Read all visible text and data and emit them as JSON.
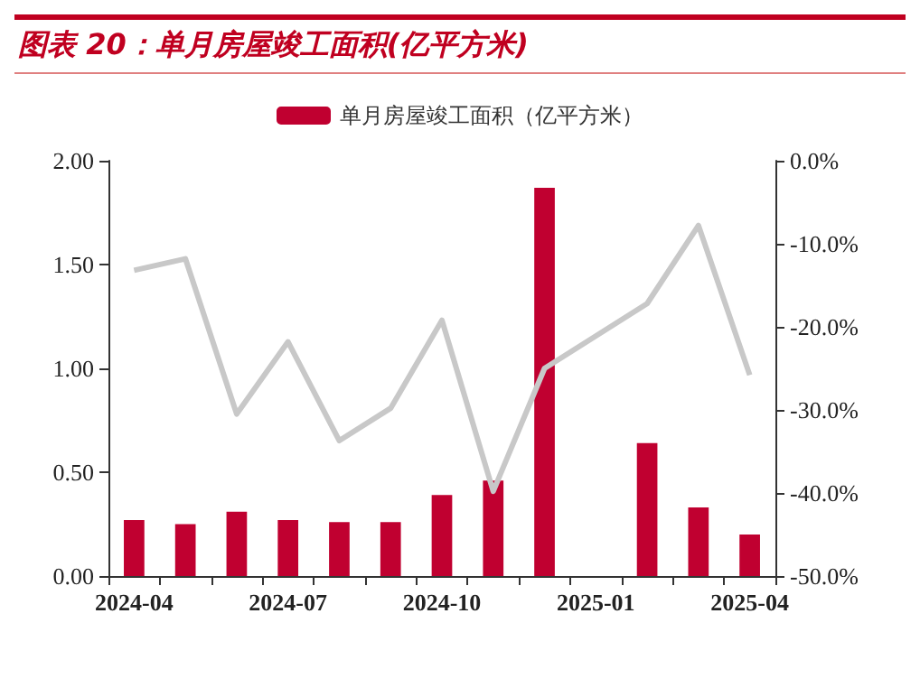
{
  "chart_data": {
    "type": "bar",
    "title": "图表 20：单月房屋竣工面积(亿平方米)",
    "categories": [
      "2024-04",
      null,
      null,
      "2024-07",
      null,
      null,
      "2024-10",
      null,
      null,
      "2025-01",
      null,
      null,
      "2025-04"
    ],
    "series": [
      {
        "name": "单月房屋竣工面积（亿平方米）",
        "color": "#c00030",
        "values": [
          0.27,
          0.25,
          0.31,
          0.27,
          0.26,
          0.26,
          0.39,
          0.46,
          1.87,
          null,
          0.64,
          0.33,
          0.2
        ]
      },
      {
        "type": "line",
        "axis": "y2",
        "color": "#c8c8c8",
        "values": [
          -13.2,
          -11.8,
          -30.5,
          -21.8,
          -33.7,
          -29.8,
          -19.2,
          -39.8,
          -25.0,
          null,
          -17.2,
          -7.8,
          -25.8
        ]
      }
    ],
    "ylim": [
      0,
      2
    ],
    "yticks": [
      {
        "value": 0,
        "label": "0.00"
      },
      {
        "value": 0.5,
        "label": "0.50"
      },
      {
        "value": 1,
        "label": "1.00"
      },
      {
        "value": 1.5,
        "label": "1.50"
      },
      {
        "value": 2,
        "label": "2.00"
      }
    ],
    "y2lim": [
      -50,
      0
    ],
    "y2ticks": [
      {
        "value": -50,
        "label": "-50.0%"
      },
      {
        "value": -40,
        "label": "-40.0%"
      },
      {
        "value": -30,
        "label": "-30.0%"
      },
      {
        "value": -20,
        "label": "-20.0%"
      },
      {
        "value": -10,
        "label": "-10.0%"
      },
      {
        "value": 0,
        "label": "0.0%"
      }
    ],
    "legend": "top",
    "grid": false,
    "marker": "none"
  }
}
